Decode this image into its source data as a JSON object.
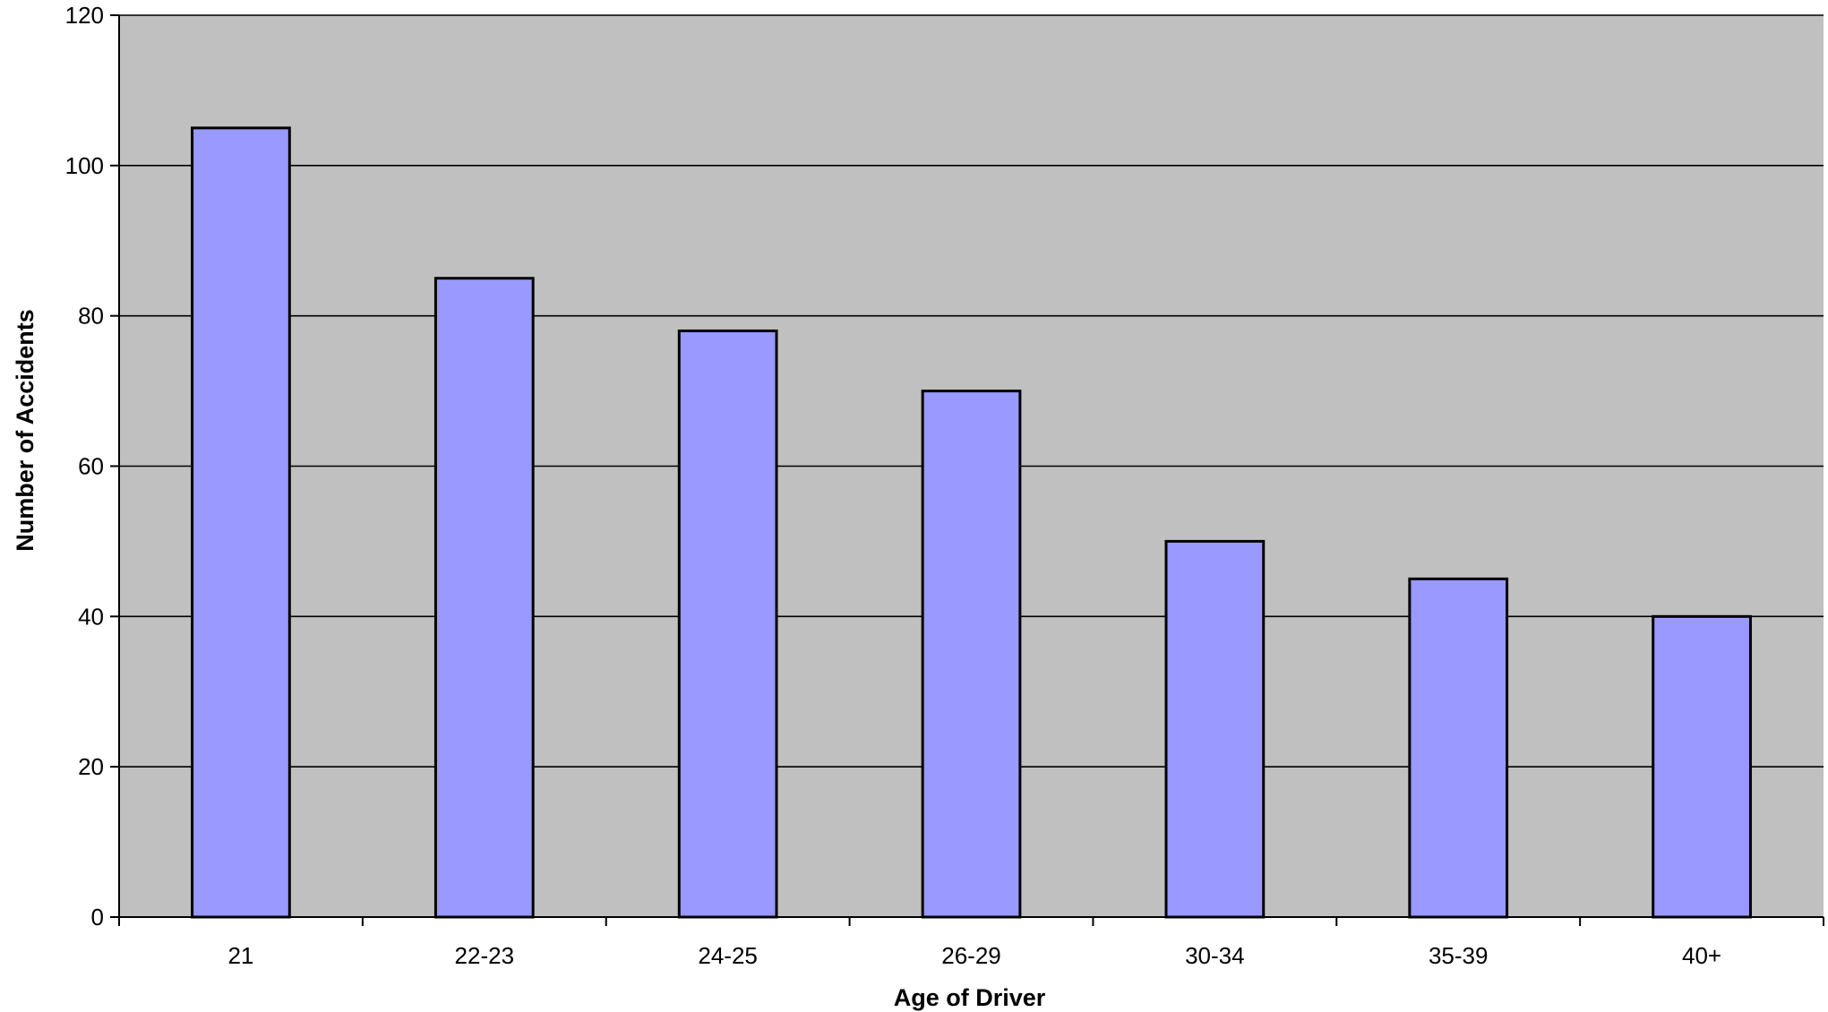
{
  "chart_data": {
    "type": "bar",
    "title": "",
    "xlabel": "Age of Driver",
    "ylabel": "Number of Accidents",
    "categories": [
      "21",
      "22-23",
      "24-25",
      "26-29",
      "30-34",
      "35-39",
      "40+"
    ],
    "values": [
      105,
      85,
      78,
      70,
      50,
      45,
      40
    ],
    "ylim": [
      0,
      120
    ],
    "yticks": [
      0,
      20,
      40,
      60,
      80,
      100,
      120
    ],
    "grid": true,
    "legend": "none",
    "colors": {
      "plot_background": "#c0c0c0",
      "bar_fill": "#9999ff",
      "bar_stroke": "#000000",
      "gridline": "#000000"
    }
  }
}
